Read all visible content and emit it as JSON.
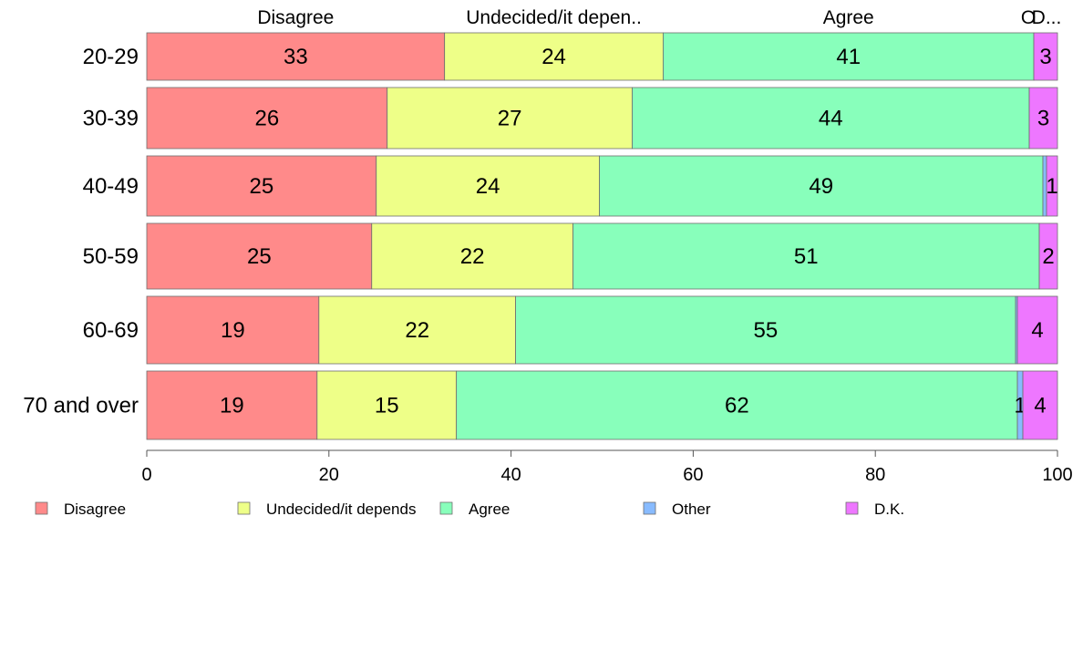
{
  "chart_data": {
    "type": "bar",
    "orientation": "horizontal",
    "stacked": true,
    "percent": true,
    "categories": [
      "20-29",
      "30-39",
      "40-49",
      "50-59",
      "60-69",
      "70 and over"
    ],
    "series": [
      {
        "name": "Disagree",
        "color": "#ff8a8a",
        "values": [
          32.7,
          26.4,
          25.2,
          24.7,
          18.9,
          18.7
        ],
        "labels": [
          "33",
          "26",
          "25",
          "25",
          "19",
          "19"
        ]
      },
      {
        "name": "Undecided/it depends",
        "color": "#eeff88",
        "values": [
          24.0,
          26.9,
          24.5,
          22.1,
          21.6,
          15.3
        ],
        "labels": [
          "24",
          "27",
          "24",
          "22",
          "22",
          "15"
        ]
      },
      {
        "name": "Agree",
        "color": "#88ffbb",
        "values": [
          40.7,
          43.6,
          48.7,
          51.2,
          54.9,
          61.6
        ],
        "labels": [
          "41",
          "44",
          "49",
          "51",
          "55",
          "62"
        ]
      },
      {
        "name": "Other",
        "color": "#88bbff",
        "values": [
          0,
          0,
          0.4,
          0,
          0.2,
          0.6
        ],
        "labels": [
          "",
          "",
          "",
          "",
          "",
          "1"
        ]
      },
      {
        "name": "D.K.",
        "color": "#ee77ff",
        "values": [
          2.6,
          3.1,
          1.2,
          2.0,
          4.4,
          3.8
        ],
        "labels": [
          "3",
          "3",
          "1",
          "2",
          "4",
          "4"
        ]
      }
    ],
    "column_headers": [
      "Disagree",
      "Undecided/it depen..",
      "Agree",
      "O",
      "D..."
    ],
    "x_ticks": [
      "0",
      "20",
      "40",
      "60",
      "80",
      "100"
    ],
    "xlim": [
      0,
      100
    ],
    "grid": false,
    "legend_position": "bottom",
    "legend": [
      "Disagree",
      "Undecided/it depends",
      "Agree",
      "Other",
      "D.K."
    ]
  }
}
